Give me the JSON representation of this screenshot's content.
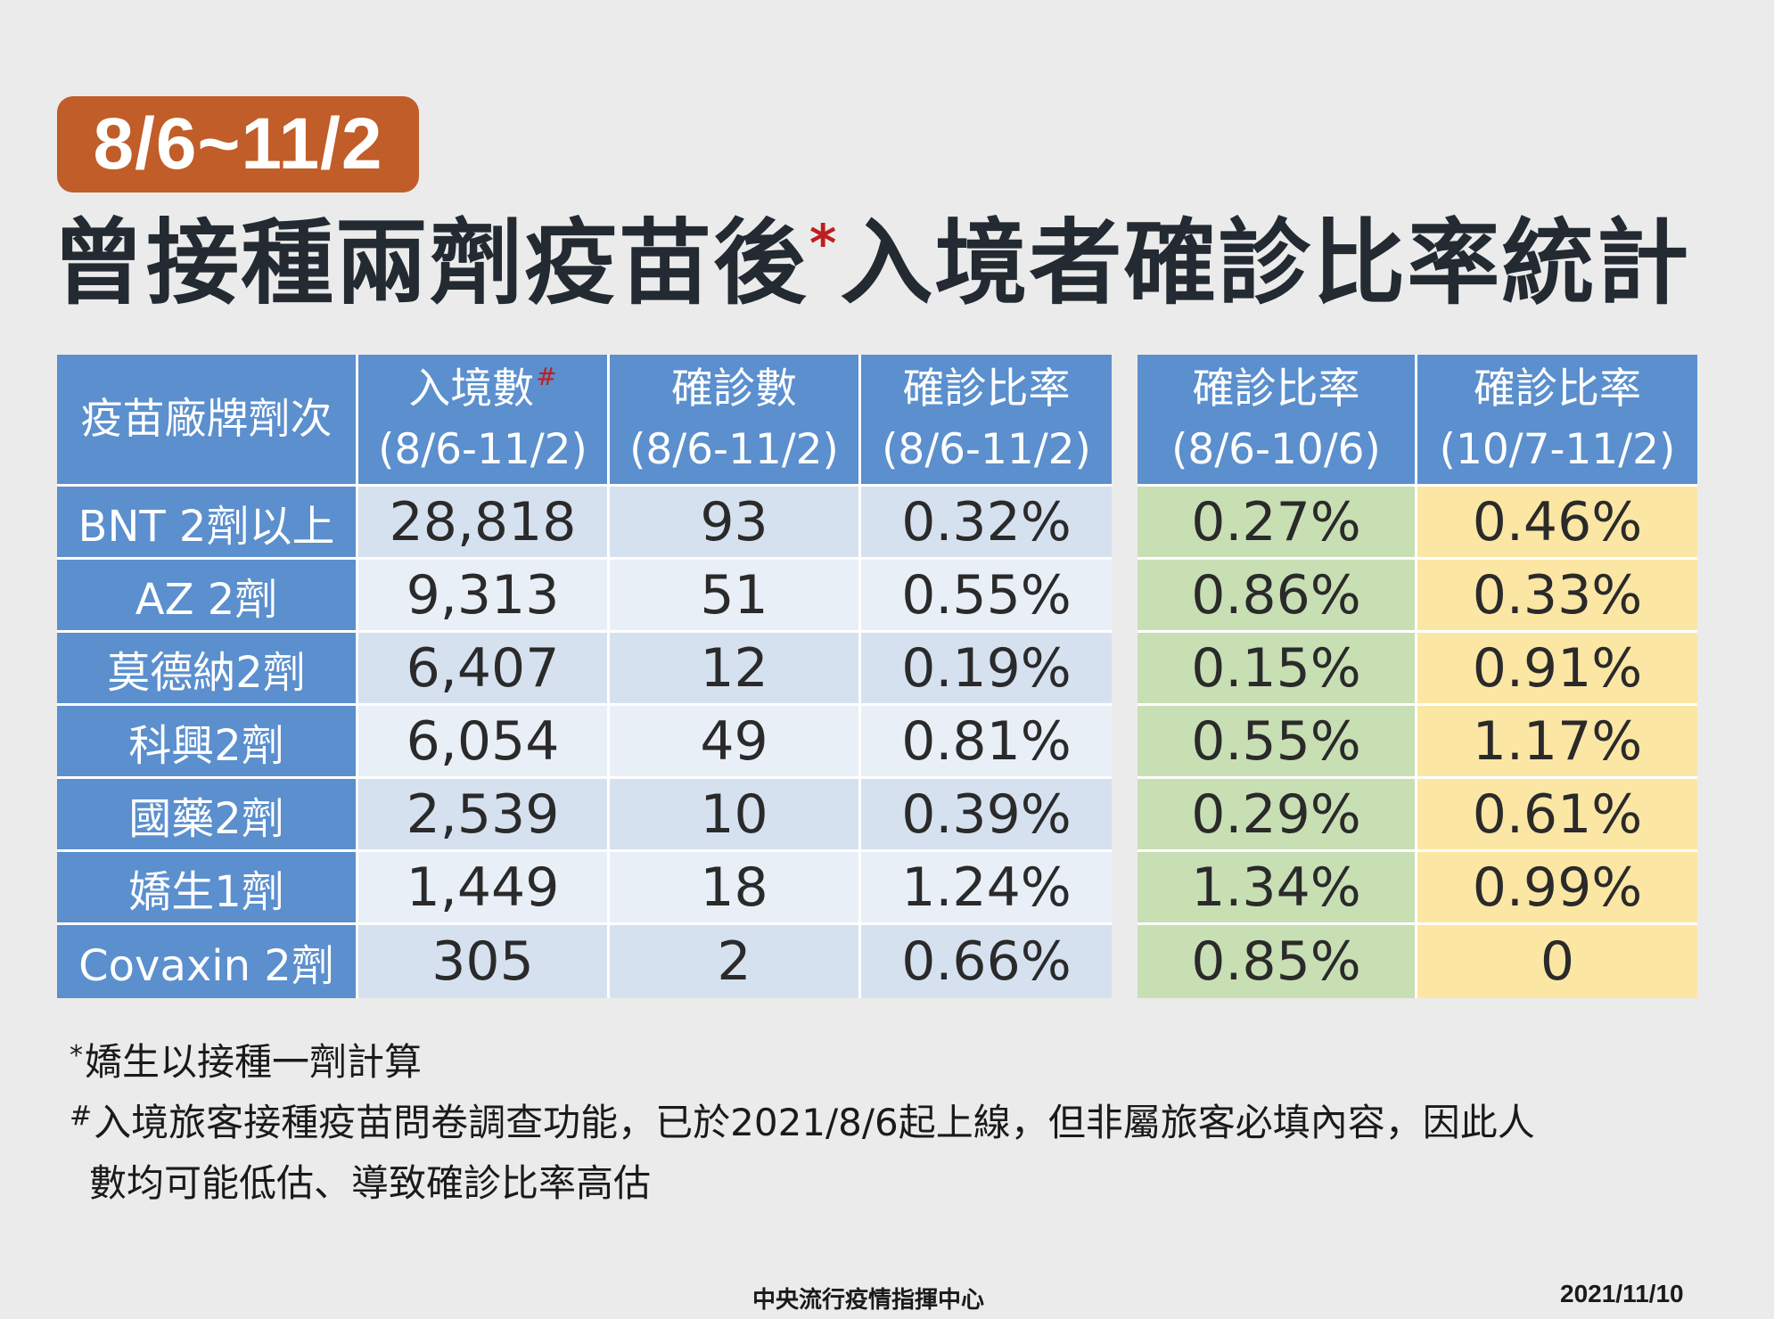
{
  "badge": {
    "date_range": "8/6~11/2"
  },
  "title": {
    "before": "曾接種兩劑疫苗後",
    "mark": "*",
    "after": "入境者確診比率統計"
  },
  "table": {
    "headers": {
      "brand": "疫苗廠牌劑次",
      "entries": {
        "line1": "入境數",
        "mark": "#",
        "line2": "(8/6-11/2)"
      },
      "cases": {
        "line1": "確診數",
        "line2": "(8/6-11/2)"
      },
      "rate_all": {
        "line1": "確診比率",
        "line2": "(8/6-11/2)"
      },
      "rate_p1": {
        "line1": "確診比率",
        "line2": "(8/6-10/6)"
      },
      "rate_p2": {
        "line1": "確診比率",
        "line2": "(10/7-11/2)"
      }
    },
    "rows": [
      {
        "brand": "BNT 2劑以上",
        "entries": "28,818",
        "cases": "93",
        "rate_all": "0.32%",
        "rate_p1": "0.27%",
        "rate_p2": "0.46%"
      },
      {
        "brand": "AZ 2劑",
        "entries": "9,313",
        "cases": "51",
        "rate_all": "0.55%",
        "rate_p1": "0.86%",
        "rate_p2": "0.33%"
      },
      {
        "brand": "莫德納2劑",
        "entries": "6,407",
        "cases": "12",
        "rate_all": "0.19%",
        "rate_p1": "0.15%",
        "rate_p2": "0.91%"
      },
      {
        "brand": "科興2劑",
        "entries": "6,054",
        "cases": "49",
        "rate_all": "0.81%",
        "rate_p1": "0.55%",
        "rate_p2": "1.17%"
      },
      {
        "brand": "國藥2劑",
        "entries": "2,539",
        "cases": "10",
        "rate_all": "0.39%",
        "rate_p1": "0.29%",
        "rate_p2": "0.61%"
      },
      {
        "brand": "嬌生1劑",
        "entries": "1,449",
        "cases": "18",
        "rate_all": "1.24%",
        "rate_p1": "1.34%",
        "rate_p2": "0.99%"
      },
      {
        "brand": "Covaxin 2劑",
        "entries": "305",
        "cases": "2",
        "rate_all": "0.66%",
        "rate_p1": "0.85%",
        "rate_p2": "0"
      }
    ]
  },
  "notes": {
    "note1": {
      "mark": "*",
      "text": "嬌生以接種一劑計算"
    },
    "note2": {
      "mark": "#",
      "line1": "入境旅客接種疫苗問卷調查功能，已於2021/8/6起上線，但非屬旅客必填內容，因此人",
      "line2": "數均可能低估、導致確診比率高估"
    }
  },
  "footer": {
    "organization": "中央流行疫情指揮中心",
    "date": "2021/11/10"
  },
  "colors": {
    "badge_bg": "#c15d28",
    "header_blue": "#5b8fce",
    "row_light": "#e9eff7",
    "row_dark": "#d6e1f0",
    "period1_green": "#c8dfb4",
    "period2_yellow": "#fce6a4",
    "mark_red": "#c01f1f"
  }
}
